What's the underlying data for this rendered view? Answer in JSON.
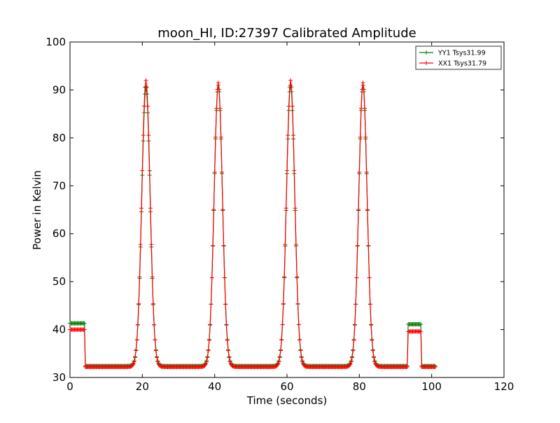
{
  "chart_data": {
    "type": "line",
    "title": "moon_HI, ID:27397 Calibrated Amplitude",
    "xlabel": "Time (seconds)",
    "ylabel": "Power in Kelvin",
    "xlim": [
      0,
      120
    ],
    "ylim": [
      30,
      100
    ],
    "x_ticks": [
      "0",
      "20",
      "40",
      "60",
      "80",
      "100",
      "120"
    ],
    "y_ticks": [
      "30",
      "40",
      "50",
      "60",
      "70",
      "80",
      "90",
      "100"
    ],
    "grid": false,
    "legend_position": "top-right",
    "marker": "plus",
    "series": [
      {
        "name": "YY1 Tsys31.99",
        "color": "#008000",
        "baseline": 32.4,
        "peaks": [
          {
            "x": 21.0,
            "y": 90.5
          },
          {
            "x": 41.0,
            "y": 91.0
          },
          {
            "x": 61.0,
            "y": 91.0
          },
          {
            "x": 81.0,
            "y": 91.0
          }
        ],
        "pre_level": 41.3,
        "post_level": 41.1,
        "points": [
          [
            0.0,
            41.3
          ],
          [
            4.0,
            41.3
          ],
          [
            4.3,
            32.8
          ],
          [
            17.0,
            32.4
          ],
          [
            18.0,
            33.5
          ],
          [
            19.0,
            42.0
          ],
          [
            20.0,
            70.0
          ],
          [
            21.0,
            90.5
          ],
          [
            22.0,
            72.0
          ],
          [
            23.0,
            43.0
          ],
          [
            24.0,
            33.0
          ],
          [
            25.0,
            32.3
          ],
          [
            37.0,
            32.5
          ],
          [
            38.0,
            34.0
          ],
          [
            39.0,
            45.0
          ],
          [
            40.0,
            72.0
          ],
          [
            41.0,
            91.0
          ],
          [
            42.0,
            70.0
          ],
          [
            43.0,
            42.0
          ],
          [
            44.0,
            33.0
          ],
          [
            45.0,
            32.2
          ],
          [
            57.0,
            32.5
          ],
          [
            58.0,
            34.0
          ],
          [
            59.0,
            45.0
          ],
          [
            60.0,
            72.0
          ],
          [
            61.0,
            91.0
          ],
          [
            62.0,
            70.0
          ],
          [
            63.0,
            42.0
          ],
          [
            64.0,
            33.0
          ],
          [
            65.0,
            32.4
          ],
          [
            77.0,
            32.5
          ],
          [
            78.0,
            34.0
          ],
          [
            79.0,
            45.0
          ],
          [
            80.0,
            72.0
          ],
          [
            81.0,
            91.0
          ],
          [
            82.0,
            70.0
          ],
          [
            83.0,
            42.0
          ],
          [
            84.0,
            33.0
          ],
          [
            85.0,
            32.6
          ],
          [
            93.0,
            32.5
          ],
          [
            93.5,
            41.1
          ],
          [
            97.0,
            41.1
          ],
          [
            97.3,
            32.6
          ],
          [
            101.0,
            32.6
          ]
        ]
      },
      {
        "name": "XX1 Tsys31.79",
        "color": "#ff0000",
        "baseline": 32.2,
        "peaks": [
          {
            "x": 21.0,
            "y": 92.0
          },
          {
            "x": 41.0,
            "y": 91.5
          },
          {
            "x": 61.0,
            "y": 92.0
          },
          {
            "x": 81.0,
            "y": 91.5
          }
        ],
        "pre_level": 40.0,
        "post_level": 39.6,
        "points": [
          [
            0.0,
            40.0
          ],
          [
            4.0,
            40.0
          ],
          [
            4.3,
            32.5
          ],
          [
            17.0,
            32.2
          ],
          [
            18.0,
            33.5
          ],
          [
            19.0,
            42.0
          ],
          [
            20.0,
            73.0
          ],
          [
            21.0,
            92.0
          ],
          [
            22.0,
            61.0
          ],
          [
            23.0,
            43.0
          ],
          [
            24.0,
            33.0
          ],
          [
            25.0,
            32.0
          ],
          [
            37.0,
            32.3
          ],
          [
            38.0,
            34.0
          ],
          [
            39.0,
            45.0
          ],
          [
            40.0,
            74.0
          ],
          [
            41.0,
            91.5
          ],
          [
            42.0,
            70.0
          ],
          [
            43.0,
            42.0
          ],
          [
            44.0,
            33.0
          ],
          [
            45.0,
            32.0
          ],
          [
            57.0,
            32.2
          ],
          [
            58.0,
            34.0
          ],
          [
            59.0,
            45.0
          ],
          [
            60.0,
            78.0
          ],
          [
            61.0,
            92.0
          ],
          [
            62.0,
            70.0
          ],
          [
            63.0,
            42.0
          ],
          [
            64.0,
            33.0
          ],
          [
            65.0,
            32.1
          ],
          [
            77.0,
            32.2
          ],
          [
            78.0,
            34.0
          ],
          [
            79.0,
            45.0
          ],
          [
            80.0,
            77.0
          ],
          [
            81.0,
            91.5
          ],
          [
            82.0,
            70.0
          ],
          [
            83.0,
            42.0
          ],
          [
            84.0,
            33.0
          ],
          [
            85.0,
            32.4
          ],
          [
            93.0,
            32.3
          ],
          [
            93.5,
            39.6
          ],
          [
            97.0,
            39.6
          ],
          [
            97.3,
            32.3
          ],
          [
            101.0,
            32.3
          ]
        ]
      }
    ]
  }
}
